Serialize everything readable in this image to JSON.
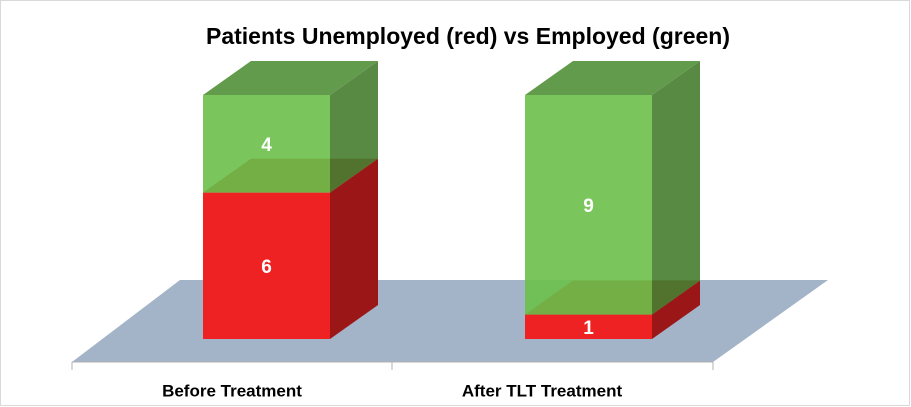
{
  "chart_data": {
    "type": "bar3d_stacked",
    "title": "Patients Unemployed (red) vs Employed (green)",
    "categories": [
      "Before Treatment",
      "After TLT Treatment"
    ],
    "series": [
      {
        "color": "#ee2222",
        "values": [
          6,
          1
        ]
      },
      {
        "color": "#6cc04a",
        "values": [
          4,
          9
        ]
      }
    ]
  }
}
